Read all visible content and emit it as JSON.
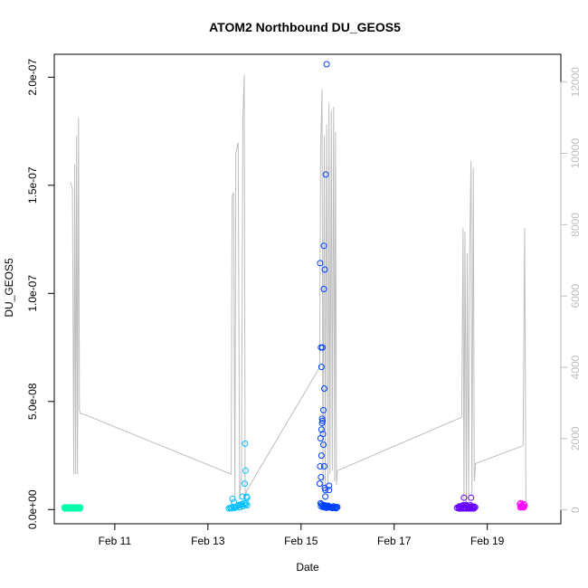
{
  "chart_data": {
    "type": "scatter",
    "title": "ATOM2 Northbound DU_GEOS5",
    "xlabel": "Date",
    "ylabel": "DU_GEOS5",
    "xlim": [
      9.7,
      20.58
    ],
    "ylim": [
      -6.56e-09,
      2.106e-07
    ],
    "y_ticks": [
      0,
      5e-08,
      1e-07,
      1.5e-07,
      2e-07
    ],
    "y_tick_labels": [
      "0.0e+00",
      "5.0e-08",
      "1.0e-07",
      "1.5e-07",
      "2.0e-07"
    ],
    "x_ticks": [
      11,
      13,
      15,
      17,
      19
    ],
    "x_tick_labels": [
      "Feb 11",
      "Feb 13",
      "Feb 15",
      "Feb 17",
      "Feb 19"
    ],
    "y2lim": [
      -390,
      12780
    ],
    "y2_ticks": [
      0,
      2000,
      4000,
      6000,
      8000,
      10000,
      12000
    ],
    "y2_tick_labels": [
      "0",
      "2000",
      "4000",
      "6000",
      "8000",
      "10000",
      "12000"
    ],
    "grid": false,
    "legend": "none",
    "colors": {
      "frame": "#000000",
      "secondary_axis": "#bebebe",
      "altitude_line": "#bebebe"
    },
    "altitude_series": {
      "axis": "right",
      "color": "#bebebe",
      "x": [
        10.05,
        10.09,
        10.12,
        10.14,
        10.16,
        10.18,
        10.2,
        10.22,
        10.24,
        10.26,
        10.28,
        10.3,
        13.5,
        13.52,
        13.55,
        13.58,
        13.6,
        13.63,
        13.65,
        13.68,
        13.72,
        13.75,
        13.78,
        13.8,
        13.82,
        13.86,
        15.4,
        15.42,
        15.45,
        15.47,
        15.5,
        15.52,
        15.55,
        15.58,
        15.6,
        15.62,
        15.65,
        15.67,
        15.7,
        15.72,
        15.74,
        15.76,
        15.78,
        18.45,
        18.48,
        18.5,
        18.52,
        18.55,
        18.57,
        18.6,
        18.62,
        18.65,
        18.67,
        18.7,
        18.72,
        18.75,
        19.77,
        19.8,
        19.83
      ],
      "y": [
        9200,
        9000,
        1000,
        9700,
        1000,
        10500,
        1000,
        11000,
        2800,
        2700,
        2700,
        2700,
        1000,
        8800,
        8900,
        300,
        10000,
        10200,
        10300,
        300,
        1000,
        11000,
        12200,
        300,
        500,
        600,
        4000,
        10000,
        11800,
        500,
        10500,
        500,
        10800,
        700,
        11400,
        1000,
        11200,
        1100,
        11300,
        800,
        10600,
        700,
        1100,
        2600,
        7900,
        200,
        7800,
        200,
        7200,
        200,
        7100,
        9800,
        400,
        9600,
        800,
        1300,
        1800,
        7900,
        200
      ]
    },
    "series": [
      {
        "color": "#00ffaa",
        "x": [
          9.92,
          9.94,
          9.96,
          9.98,
          10.0,
          10.02,
          10.04,
          10.06,
          10.08,
          10.1,
          10.12,
          10.14,
          10.16,
          10.18,
          10.2,
          10.22,
          10.24,
          10.26,
          9.93,
          9.97,
          10.01,
          10.05,
          10.09,
          10.13,
          10.17,
          10.21,
          10.25
        ],
        "y": [
          1e-09,
          1e-09,
          1e-09,
          1.1e-09,
          1e-09,
          1e-09,
          1e-09,
          1e-09,
          1e-09,
          1e-09,
          1e-09,
          1e-09,
          1e-09,
          1e-09,
          1e-09,
          1e-09,
          1e-09,
          1e-09,
          5e-10,
          5e-10,
          5e-10,
          5e-10,
          5e-10,
          5e-10,
          5e-10,
          5e-10,
          5e-10
        ]
      },
      {
        "color": "#00bfff",
        "x": [
          13.45,
          13.48,
          13.5,
          13.52,
          13.55,
          13.58,
          13.6,
          13.62,
          13.65,
          13.68,
          13.7,
          13.72,
          13.75,
          13.78,
          13.8,
          13.82,
          13.84,
          13.56,
          13.66,
          13.74,
          13.79,
          13.81,
          13.8,
          13.83,
          13.84,
          13.53
        ],
        "y": [
          5e-10,
          8e-10,
          1e-09,
          6e-10,
          1.2e-09,
          8e-10,
          1e-09,
          1.5e-09,
          1.8e-09,
          1e-09,
          2e-09,
          2.5e-09,
          1.5e-09,
          3e-09,
          2.2e-09,
          3e-09,
          2e-09,
          3.5e-09,
          2.2e-09,
          6e-09,
          1.2e-08,
          1.8e-08,
          3.05e-08,
          6e-09,
          5.5e-09,
          5e-09
        ]
      },
      {
        "color": "#0040ff",
        "x": [
          15.42,
          15.44,
          15.46,
          15.48,
          15.5,
          15.52,
          15.54,
          15.56,
          15.58,
          15.6,
          15.62,
          15.64,
          15.66,
          15.68,
          15.7,
          15.72,
          15.74,
          15.76,
          15.78,
          15.43,
          15.47,
          15.51,
          15.55,
          15.59,
          15.63,
          15.67,
          15.71,
          15.75,
          15.4,
          15.41,
          15.43,
          15.44,
          15.42,
          15.44,
          15.45,
          15.45,
          15.46,
          15.47,
          15.48,
          15.5,
          15.5,
          15.51,
          15.52,
          15.52,
          15.48,
          15.44,
          15.43,
          15.46,
          15.41,
          15.49,
          15.51,
          15.49,
          15.53,
          15.55,
          15.6,
          15.6
        ],
        "y": [
          3e-09,
          2.5e-09,
          2e-09,
          1.5e-09,
          2e-09,
          1.8e-09,
          1.5e-09,
          1.2e-09,
          1.8e-09,
          1.5e-09,
          1e-09,
          1.2e-09,
          9e-10,
          1e-09,
          1.5e-09,
          1e-09,
          8e-10,
          1e-09,
          1.2e-09,
          1.5e-09,
          1.2e-09,
          1e-09,
          8e-10,
          1.3e-09,
          1e-09,
          7e-10,
          9e-10,
          6e-10,
          1.2e-08,
          2e-08,
          1.5e-08,
          2.5e-08,
          3.3e-08,
          3.7e-08,
          4e-08,
          4.2e-08,
          4.1e-08,
          3.5e-08,
          3e-08,
          2e-08,
          5.6e-08,
          1e-08,
          9e-09,
          6e-09,
          4.6e-08,
          6.6e-08,
          7.5e-08,
          7.5e-08,
          1.14e-07,
          1.22e-07,
          1.11e-07,
          1.02e-07,
          1.55e-07,
          2.06e-07,
          9e-09,
          1.1e-08
        ]
      },
      {
        "color": "#6600ff",
        "x": [
          18.35,
          18.38,
          18.4,
          18.42,
          18.44,
          18.46,
          18.48,
          18.5,
          18.52,
          18.54,
          18.56,
          18.58,
          18.6,
          18.62,
          18.64,
          18.66,
          18.68,
          18.7,
          18.72,
          18.74,
          18.39,
          18.43,
          18.47,
          18.51,
          18.55,
          18.59,
          18.63,
          18.67,
          18.71,
          18.5,
          18.65
        ],
        "y": [
          8e-10,
          1e-09,
          1.5e-09,
          1.2e-09,
          1e-09,
          1.6e-09,
          2e-09,
          1.2e-09,
          1e-09,
          2.2e-09,
          1.8e-09,
          1.5e-09,
          1.2e-09,
          1e-09,
          2e-09,
          1.5e-09,
          1.2e-09,
          1e-09,
          1.4e-09,
          1.1e-09,
          5e-10,
          5e-10,
          5e-10,
          5e-10,
          5e-10,
          5e-10,
          5e-10,
          5e-10,
          5e-10,
          5.5e-09,
          5.5e-09
        ]
      },
      {
        "color": "#ff00ff",
        "x": [
          19.7,
          19.72,
          19.74,
          19.76,
          19.78,
          19.8,
          19.71,
          19.73,
          19.75,
          19.77,
          19.79
        ],
        "y": [
          2.5e-09,
          3e-09,
          2e-09,
          1.5e-09,
          2.5e-09,
          2e-09,
          1e-09,
          1.2e-09,
          1.5e-09,
          1e-09,
          1.2e-09
        ]
      }
    ]
  }
}
